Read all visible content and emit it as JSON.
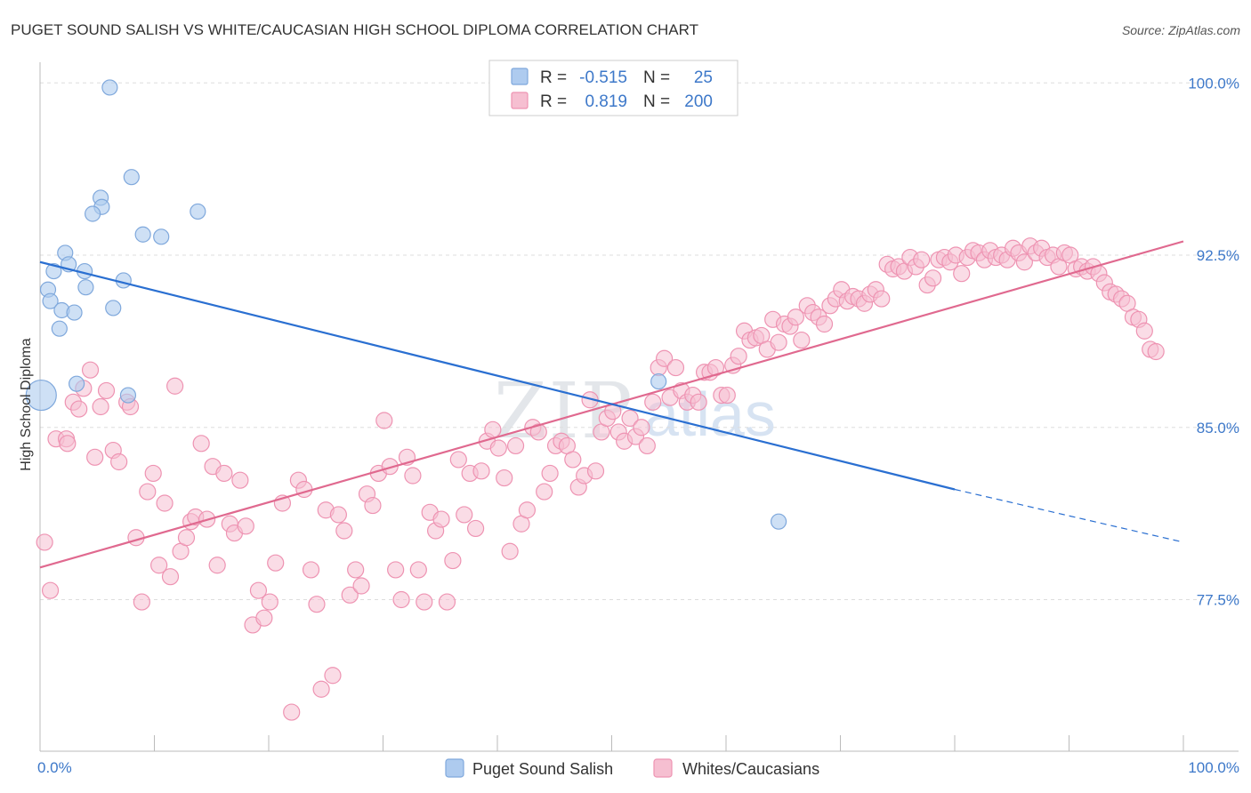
{
  "header": {
    "title": "PUGET SOUND SALISH VS WHITE/CAUCASIAN HIGH SCHOOL DIPLOMA CORRELATION CHART",
    "source": "Source: ZipAtlas.com"
  },
  "watermark": {
    "zip": "ZIP",
    "atlas": "atlas"
  },
  "colors": {
    "blue_fill": "#aecbef",
    "blue_stroke": "#7fa8dc",
    "blue_line": "#2a6fd1",
    "pink_fill": "#f6bfd1",
    "pink_stroke": "#ee93b2",
    "pink_line": "#e0698f",
    "tick_blue": "#3d78c9",
    "grid": "#dddddd"
  },
  "legend": {
    "rows": [
      {
        "r_label": "R =",
        "r_value": "-0.515",
        "n_label": "N =",
        "n_value": "25"
      },
      {
        "r_label": "R =",
        "r_value": "0.819",
        "n_label": "N =",
        "n_value": "200"
      }
    ]
  },
  "chart_data": {
    "type": "scatter",
    "title": "PUGET SOUND SALISH VS WHITE/CAUCASIAN HIGH SCHOOL DIPLOMA CORRELATION CHART",
    "xlabel": "",
    "ylabel": "High School Diploma",
    "xlim": [
      0,
      100
    ],
    "ylim": [
      71.5,
      101.5
    ],
    "x_tick_labels": [
      {
        "value": 0,
        "label": "0.0%"
      },
      {
        "value": 100,
        "label": "100.0%"
      }
    ],
    "y_tick_labels": [
      {
        "value": 100,
        "label": "100.0%"
      },
      {
        "value": 92.5,
        "label": "92.5%"
      },
      {
        "value": 85,
        "label": "85.0%"
      },
      {
        "value": 77.5,
        "label": "77.5%"
      }
    ],
    "y_gridlines": [
      100.6,
      93.1,
      85.6,
      78.1
    ],
    "x_minor_ticks": [
      10,
      20,
      30,
      40,
      50,
      60,
      70,
      80,
      90,
      100
    ],
    "grid": true,
    "series": [
      {
        "name": "Puget Sound Salish",
        "color": "blue",
        "r": -0.515,
        "n": 25,
        "trend": {
          "x0": 0,
          "y0": 92.8,
          "x1": 80,
          "y1": 82.9,
          "dash_to_x": 100,
          "dash_to_y": 80.6
        },
        "points": [
          {
            "x": 6.1,
            "y": 100.4,
            "s": 1
          },
          {
            "x": 8.0,
            "y": 96.5,
            "s": 1
          },
          {
            "x": 5.3,
            "y": 95.6,
            "s": 1
          },
          {
            "x": 5.4,
            "y": 95.2,
            "s": 1
          },
          {
            "x": 4.6,
            "y": 94.9,
            "s": 1
          },
          {
            "x": 13.8,
            "y": 95.0,
            "s": 1
          },
          {
            "x": 9.0,
            "y": 94.0,
            "s": 1
          },
          {
            "x": 10.6,
            "y": 93.9,
            "s": 1
          },
          {
            "x": 2.2,
            "y": 93.2,
            "s": 1
          },
          {
            "x": 2.5,
            "y": 92.7,
            "s": 1
          },
          {
            "x": 1.2,
            "y": 92.4,
            "s": 1
          },
          {
            "x": 3.9,
            "y": 92.4,
            "s": 1
          },
          {
            "x": 7.3,
            "y": 92.0,
            "s": 1
          },
          {
            "x": 4.0,
            "y": 91.7,
            "s": 1
          },
          {
            "x": 0.7,
            "y": 91.6,
            "s": 1
          },
          {
            "x": 0.9,
            "y": 91.1,
            "s": 1
          },
          {
            "x": 1.9,
            "y": 90.7,
            "s": 1
          },
          {
            "x": 3.0,
            "y": 90.6,
            "s": 1
          },
          {
            "x": 6.4,
            "y": 90.8,
            "s": 1
          },
          {
            "x": 1.7,
            "y": 89.9,
            "s": 1
          },
          {
            "x": 3.2,
            "y": 87.5,
            "s": 1
          },
          {
            "x": 7.7,
            "y": 87.0,
            "s": 1
          },
          {
            "x": 0.1,
            "y": 87.0,
            "s": 2
          },
          {
            "x": 54.1,
            "y": 87.6,
            "s": 1
          },
          {
            "x": 64.6,
            "y": 81.5,
            "s": 1
          }
        ]
      },
      {
        "name": "Whites/Caucasians",
        "color": "pink",
        "r": 0.819,
        "n": 200,
        "trend": {
          "x0": 0,
          "y0": 79.5,
          "x1": 100,
          "y1": 93.7
        },
        "points": [
          {
            "x": 0.4,
            "y": 80.6
          },
          {
            "x": 0.9,
            "y": 78.5
          },
          {
            "x": 1.4,
            "y": 85.1
          },
          {
            "x": 2.3,
            "y": 85.1
          },
          {
            "x": 2.4,
            "y": 84.9
          },
          {
            "x": 2.9,
            "y": 86.7
          },
          {
            "x": 3.4,
            "y": 86.4
          },
          {
            "x": 3.8,
            "y": 87.3
          },
          {
            "x": 4.4,
            "y": 88.1
          },
          {
            "x": 4.8,
            "y": 84.3
          },
          {
            "x": 5.3,
            "y": 86.5
          },
          {
            "x": 5.8,
            "y": 87.2
          },
          {
            "x": 6.4,
            "y": 84.6
          },
          {
            "x": 6.9,
            "y": 84.1
          },
          {
            "x": 7.6,
            "y": 86.7
          },
          {
            "x": 7.9,
            "y": 86.5
          },
          {
            "x": 8.4,
            "y": 80.8
          },
          {
            "x": 8.9,
            "y": 78.0
          },
          {
            "x": 9.4,
            "y": 82.8
          },
          {
            "x": 9.9,
            "y": 83.6
          },
          {
            "x": 10.4,
            "y": 79.6
          },
          {
            "x": 10.9,
            "y": 82.3
          },
          {
            "x": 11.4,
            "y": 79.1
          },
          {
            "x": 11.8,
            "y": 87.4
          },
          {
            "x": 12.3,
            "y": 80.2
          },
          {
            "x": 12.8,
            "y": 80.8
          },
          {
            "x": 13.2,
            "y": 81.5
          },
          {
            "x": 13.6,
            "y": 81.7
          },
          {
            "x": 14.1,
            "y": 84.9
          },
          {
            "x": 14.6,
            "y": 81.6
          },
          {
            "x": 15.1,
            "y": 83.9
          },
          {
            "x": 15.5,
            "y": 79.6
          },
          {
            "x": 16.1,
            "y": 83.6
          },
          {
            "x": 16.6,
            "y": 81.4
          },
          {
            "x": 17.0,
            "y": 81.0
          },
          {
            "x": 17.5,
            "y": 83.3
          },
          {
            "x": 18.0,
            "y": 81.3
          },
          {
            "x": 18.6,
            "y": 77.0
          },
          {
            "x": 19.1,
            "y": 78.5
          },
          {
            "x": 19.6,
            "y": 77.3
          },
          {
            "x": 20.1,
            "y": 78.0
          },
          {
            "x": 20.6,
            "y": 79.7
          },
          {
            "x": 21.2,
            "y": 82.3
          },
          {
            "x": 22.0,
            "y": 73.2
          },
          {
            "x": 22.6,
            "y": 83.3
          },
          {
            "x": 23.1,
            "y": 82.9
          },
          {
            "x": 23.7,
            "y": 79.4
          },
          {
            "x": 24.2,
            "y": 77.9
          },
          {
            "x": 24.6,
            "y": 74.2
          },
          {
            "x": 25.0,
            "y": 82.0
          },
          {
            "x": 25.6,
            "y": 74.8
          },
          {
            "x": 26.1,
            "y": 81.8
          },
          {
            "x": 26.6,
            "y": 81.1
          },
          {
            "x": 27.1,
            "y": 78.3
          },
          {
            "x": 27.6,
            "y": 79.4
          },
          {
            "x": 28.1,
            "y": 78.7
          },
          {
            "x": 28.6,
            "y": 82.7
          },
          {
            "x": 29.1,
            "y": 82.2
          },
          {
            "x": 29.6,
            "y": 83.6
          },
          {
            "x": 30.1,
            "y": 85.9
          },
          {
            "x": 30.6,
            "y": 83.9
          },
          {
            "x": 31.1,
            "y": 79.4
          },
          {
            "x": 31.6,
            "y": 78.1
          },
          {
            "x": 32.1,
            "y": 84.3
          },
          {
            "x": 32.6,
            "y": 83.5
          },
          {
            "x": 33.1,
            "y": 79.4
          },
          {
            "x": 33.6,
            "y": 78.0
          },
          {
            "x": 34.1,
            "y": 81.9
          },
          {
            "x": 34.6,
            "y": 81.1
          },
          {
            "x": 35.1,
            "y": 81.6
          },
          {
            "x": 35.6,
            "y": 78.0
          },
          {
            "x": 36.1,
            "y": 79.8
          },
          {
            "x": 36.6,
            "y": 84.2
          },
          {
            "x": 37.1,
            "y": 81.8
          },
          {
            "x": 37.6,
            "y": 83.6
          },
          {
            "x": 38.1,
            "y": 81.2
          },
          {
            "x": 38.6,
            "y": 83.7
          },
          {
            "x": 39.1,
            "y": 85.0
          },
          {
            "x": 39.6,
            "y": 85.5
          },
          {
            "x": 40.1,
            "y": 84.7
          },
          {
            "x": 40.6,
            "y": 83.4
          },
          {
            "x": 41.1,
            "y": 80.2
          },
          {
            "x": 41.6,
            "y": 84.8
          },
          {
            "x": 42.1,
            "y": 81.4
          },
          {
            "x": 42.6,
            "y": 82.0
          },
          {
            "x": 43.1,
            "y": 85.6
          },
          {
            "x": 43.6,
            "y": 85.4
          },
          {
            "x": 44.1,
            "y": 82.8
          },
          {
            "x": 44.6,
            "y": 83.6
          },
          {
            "x": 45.1,
            "y": 84.8
          },
          {
            "x": 45.6,
            "y": 85.0
          },
          {
            "x": 46.1,
            "y": 84.8
          },
          {
            "x": 46.6,
            "y": 84.2
          },
          {
            "x": 47.1,
            "y": 83.0
          },
          {
            "x": 47.6,
            "y": 83.5
          },
          {
            "x": 48.1,
            "y": 86.8
          },
          {
            "x": 48.6,
            "y": 83.7
          },
          {
            "x": 49.1,
            "y": 85.4
          },
          {
            "x": 49.6,
            "y": 86.0
          },
          {
            "x": 50.1,
            "y": 86.3
          },
          {
            "x": 50.6,
            "y": 85.4
          },
          {
            "x": 51.1,
            "y": 85.0
          },
          {
            "x": 51.6,
            "y": 86.0
          },
          {
            "x": 52.1,
            "y": 85.2
          },
          {
            "x": 52.6,
            "y": 85.6
          },
          {
            "x": 53.1,
            "y": 84.8
          },
          {
            "x": 53.6,
            "y": 86.7
          },
          {
            "x": 54.1,
            "y": 88.2
          },
          {
            "x": 54.6,
            "y": 88.6
          },
          {
            "x": 55.1,
            "y": 86.9
          },
          {
            "x": 55.6,
            "y": 88.2
          },
          {
            "x": 56.1,
            "y": 87.2
          },
          {
            "x": 56.6,
            "y": 86.7
          },
          {
            "x": 57.1,
            "y": 87.0
          },
          {
            "x": 57.6,
            "y": 86.7
          },
          {
            "x": 58.1,
            "y": 88.0
          },
          {
            "x": 58.6,
            "y": 88.0
          },
          {
            "x": 59.1,
            "y": 88.2
          },
          {
            "x": 59.6,
            "y": 87.0
          },
          {
            "x": 60.1,
            "y": 87.0
          },
          {
            "x": 60.6,
            "y": 88.3
          },
          {
            "x": 61.1,
            "y": 88.7
          },
          {
            "x": 61.6,
            "y": 89.8
          },
          {
            "x": 62.1,
            "y": 89.4
          },
          {
            "x": 62.6,
            "y": 89.5
          },
          {
            "x": 63.1,
            "y": 89.6
          },
          {
            "x": 63.6,
            "y": 89.0
          },
          {
            "x": 64.1,
            "y": 90.3
          },
          {
            "x": 64.6,
            "y": 89.3
          },
          {
            "x": 65.1,
            "y": 90.1
          },
          {
            "x": 65.6,
            "y": 90.0
          },
          {
            "x": 66.1,
            "y": 90.4
          },
          {
            "x": 66.6,
            "y": 89.4
          },
          {
            "x": 67.1,
            "y": 90.9
          },
          {
            "x": 67.6,
            "y": 90.6
          },
          {
            "x": 68.1,
            "y": 90.4
          },
          {
            "x": 68.6,
            "y": 90.1
          },
          {
            "x": 69.1,
            "y": 90.9
          },
          {
            "x": 69.6,
            "y": 91.2
          },
          {
            "x": 70.1,
            "y": 91.6
          },
          {
            "x": 70.6,
            "y": 91.1
          },
          {
            "x": 71.1,
            "y": 91.3
          },
          {
            "x": 71.6,
            "y": 91.2
          },
          {
            "x": 72.1,
            "y": 91.0
          },
          {
            "x": 72.6,
            "y": 91.4
          },
          {
            "x": 73.1,
            "y": 91.6
          },
          {
            "x": 73.6,
            "y": 91.2
          },
          {
            "x": 74.1,
            "y": 92.7
          },
          {
            "x": 74.6,
            "y": 92.5
          },
          {
            "x": 75.1,
            "y": 92.6
          },
          {
            "x": 75.6,
            "y": 92.4
          },
          {
            "x": 76.1,
            "y": 93.0
          },
          {
            "x": 76.6,
            "y": 92.6
          },
          {
            "x": 77.1,
            "y": 92.9
          },
          {
            "x": 77.6,
            "y": 91.8
          },
          {
            "x": 78.1,
            "y": 92.1
          },
          {
            "x": 78.6,
            "y": 92.9
          },
          {
            "x": 79.1,
            "y": 93.0
          },
          {
            "x": 79.6,
            "y": 92.8
          },
          {
            "x": 80.1,
            "y": 93.1
          },
          {
            "x": 80.6,
            "y": 92.3
          },
          {
            "x": 81.1,
            "y": 93.0
          },
          {
            "x": 81.6,
            "y": 93.3
          },
          {
            "x": 82.1,
            "y": 93.2
          },
          {
            "x": 82.6,
            "y": 92.9
          },
          {
            "x": 83.1,
            "y": 93.3
          },
          {
            "x": 83.6,
            "y": 93.0
          },
          {
            "x": 84.1,
            "y": 93.1
          },
          {
            "x": 84.6,
            "y": 92.9
          },
          {
            "x": 85.1,
            "y": 93.4
          },
          {
            "x": 85.6,
            "y": 93.2
          },
          {
            "x": 86.1,
            "y": 92.8
          },
          {
            "x": 86.6,
            "y": 93.5
          },
          {
            "x": 87.1,
            "y": 93.2
          },
          {
            "x": 87.6,
            "y": 93.4
          },
          {
            "x": 88.1,
            "y": 93.0
          },
          {
            "x": 88.6,
            "y": 93.1
          },
          {
            "x": 89.1,
            "y": 92.6
          },
          {
            "x": 89.6,
            "y": 93.2
          },
          {
            "x": 90.1,
            "y": 93.1
          },
          {
            "x": 90.6,
            "y": 92.5
          },
          {
            "x": 91.1,
            "y": 92.6
          },
          {
            "x": 91.6,
            "y": 92.4
          },
          {
            "x": 92.1,
            "y": 92.6
          },
          {
            "x": 92.6,
            "y": 92.3
          },
          {
            "x": 93.1,
            "y": 91.9
          },
          {
            "x": 93.6,
            "y": 91.5
          },
          {
            "x": 94.1,
            "y": 91.4
          },
          {
            "x": 94.6,
            "y": 91.2
          },
          {
            "x": 95.1,
            "y": 91.0
          },
          {
            "x": 95.6,
            "y": 90.4
          },
          {
            "x": 96.1,
            "y": 90.3
          },
          {
            "x": 96.6,
            "y": 89.8
          },
          {
            "x": 97.1,
            "y": 89.0
          },
          {
            "x": 97.6,
            "y": 88.9
          }
        ]
      }
    ]
  },
  "bottom_legend": {
    "items": [
      {
        "label": "Puget Sound Salish"
      },
      {
        "label": "Whites/Caucasians"
      }
    ]
  }
}
